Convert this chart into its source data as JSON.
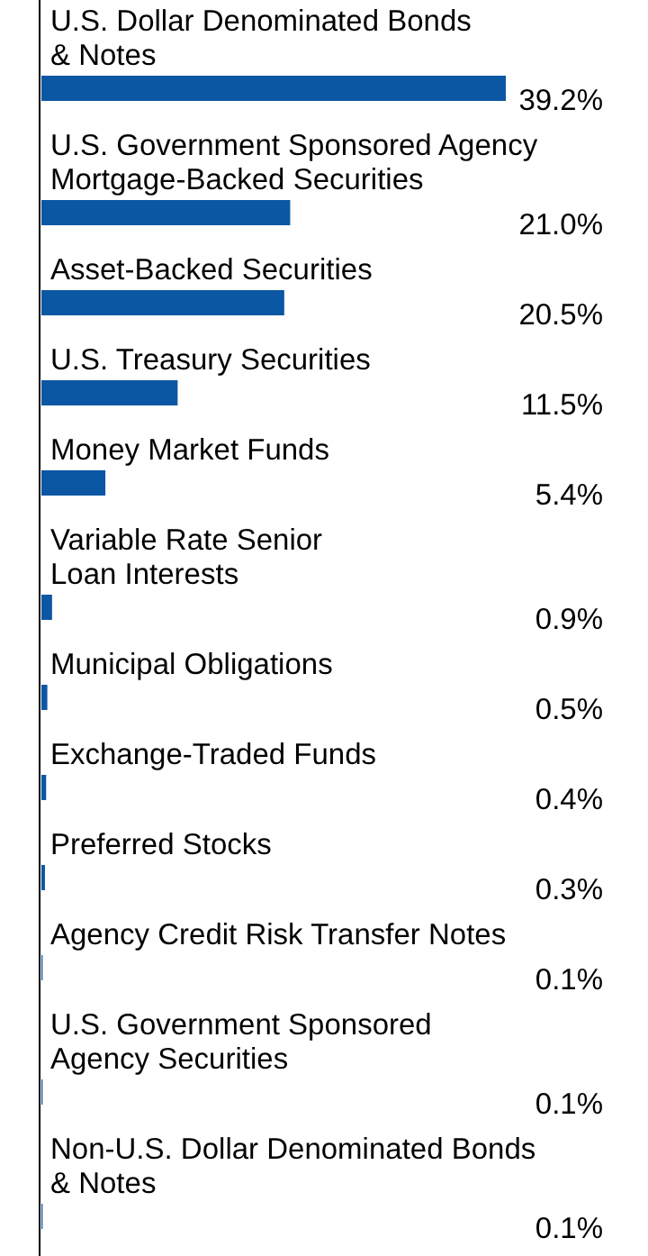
{
  "chart_data": {
    "type": "bar",
    "orientation": "horizontal",
    "categories": [
      "U.S. Dollar Denominated Bonds\n& Notes",
      "U.S. Government Sponsored Agency\nMortgage-Backed Securities",
      "Asset-Backed Securities",
      "U.S. Treasury Securities",
      "Money Market Funds",
      "Variable Rate Senior\nLoan Interests",
      "Municipal Obligations",
      "Exchange-Traded Funds",
      "Preferred Stocks",
      "Agency Credit Risk Transfer Notes",
      "U.S. Government Sponsored\nAgency Securities",
      "Non-U.S. Dollar Denominated Bonds\n& Notes"
    ],
    "values": [
      39.2,
      21.0,
      20.5,
      11.5,
      5.4,
      0.9,
      0.5,
      0.4,
      0.3,
      0.1,
      0.1,
      0.1
    ],
    "value_labels": [
      "39.2%",
      "21.0%",
      "20.5%",
      "11.5%",
      "5.4%",
      "0.9%",
      "0.5%",
      "0.4%",
      "0.3%",
      "0.1%",
      "0.1%",
      "0.1%"
    ],
    "color": "#0b57a4",
    "tick_labels": "y"
  }
}
